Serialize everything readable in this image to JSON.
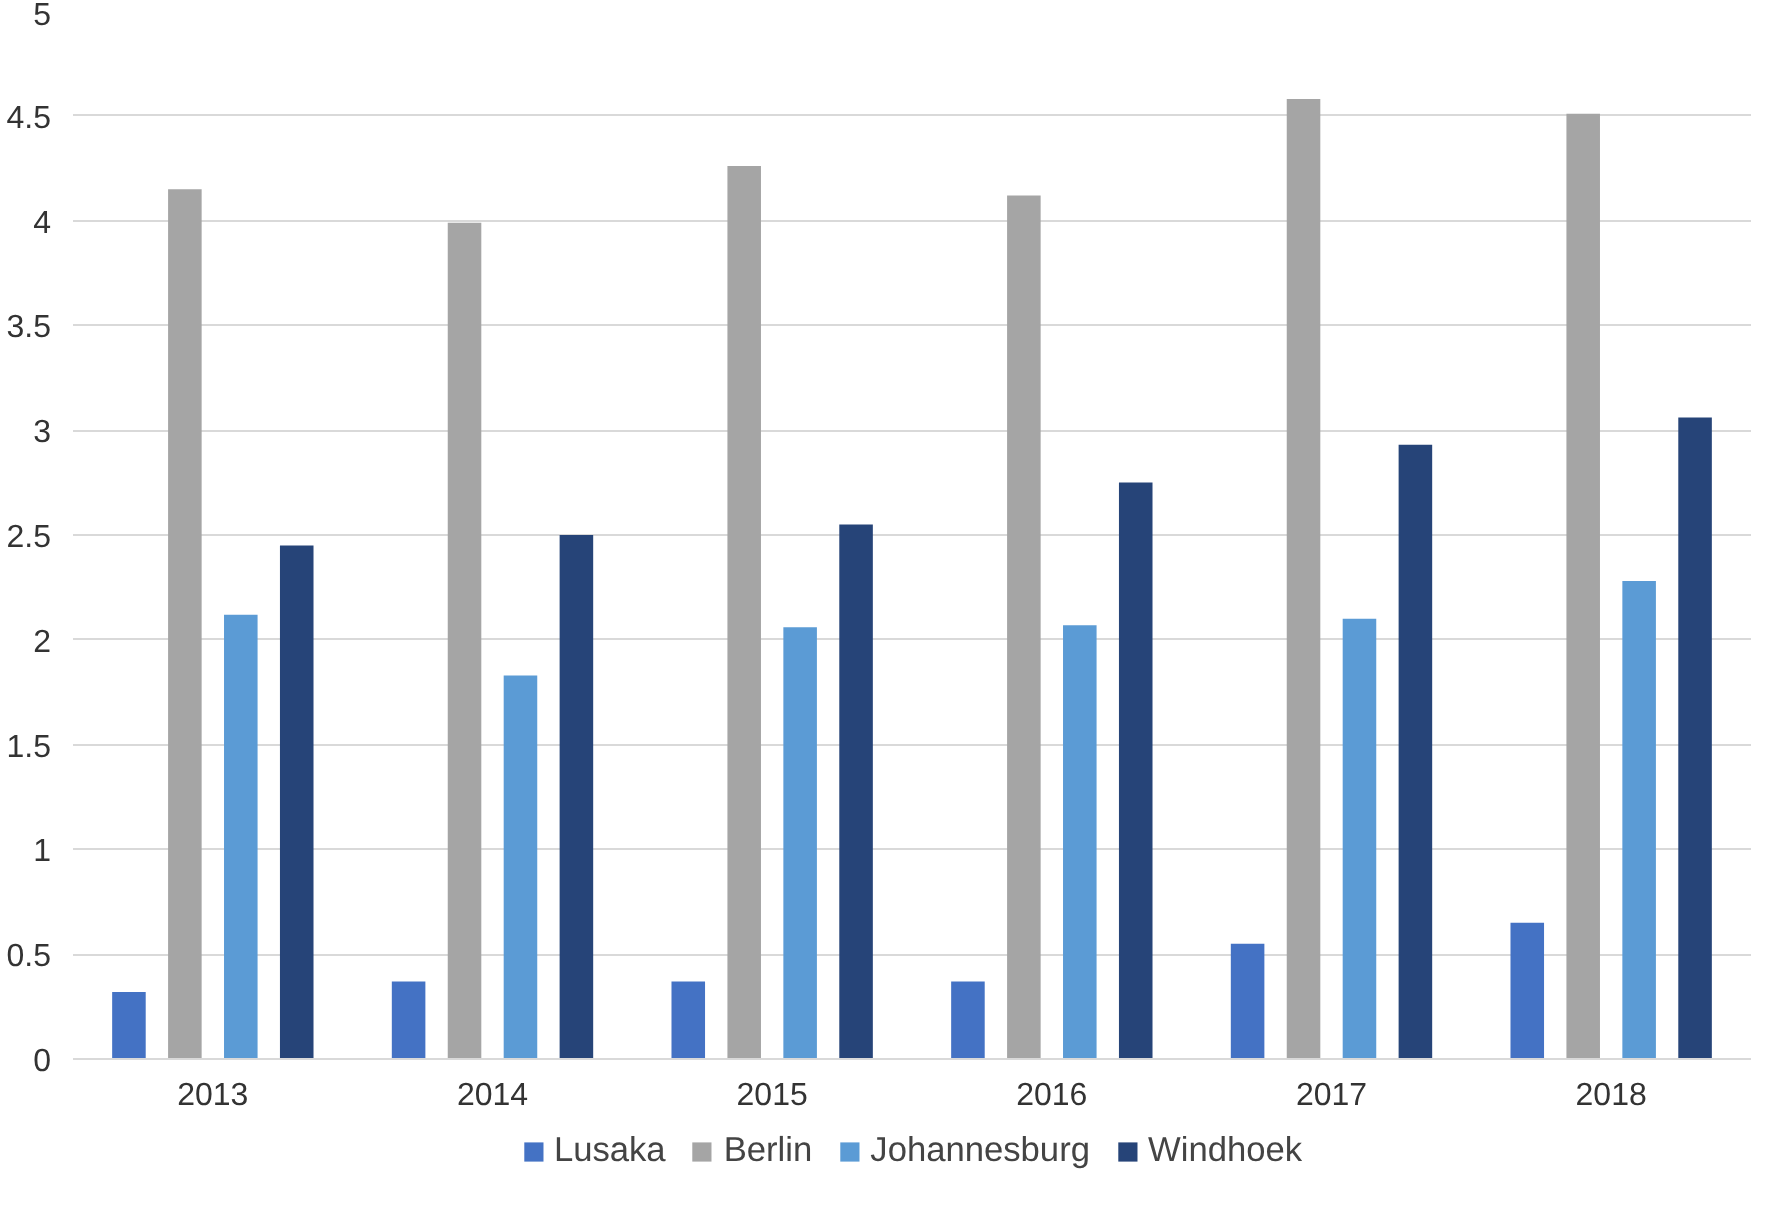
{
  "chart_data": {
    "type": "bar",
    "categories": [
      "2013",
      "2014",
      "2015",
      "2016",
      "2017",
      "2018"
    ],
    "series": [
      {
        "name": "Lusaka",
        "color": "#4472c4",
        "values": [
          0.32,
          0.37,
          0.37,
          0.37,
          0.55,
          0.65
        ]
      },
      {
        "name": "Berlin",
        "color": "#a5a5a5",
        "values": [
          4.15,
          3.99,
          4.26,
          4.12,
          4.58,
          4.51
        ]
      },
      {
        "name": "Johannesburg",
        "color": "#5b9bd5",
        "values": [
          2.12,
          1.83,
          2.06,
          2.07,
          2.1,
          2.28
        ]
      },
      {
        "name": "Windhoek",
        "color": "#264478",
        "values": [
          2.45,
          2.5,
          2.55,
          2.75,
          2.93,
          3.06
        ]
      }
    ],
    "ylim": [
      0,
      5
    ],
    "yticks": [
      0,
      0.5,
      1,
      1.5,
      2,
      2.5,
      3,
      3.5,
      4,
      4.5,
      5
    ],
    "grid": "y",
    "legend": "bottom"
  }
}
